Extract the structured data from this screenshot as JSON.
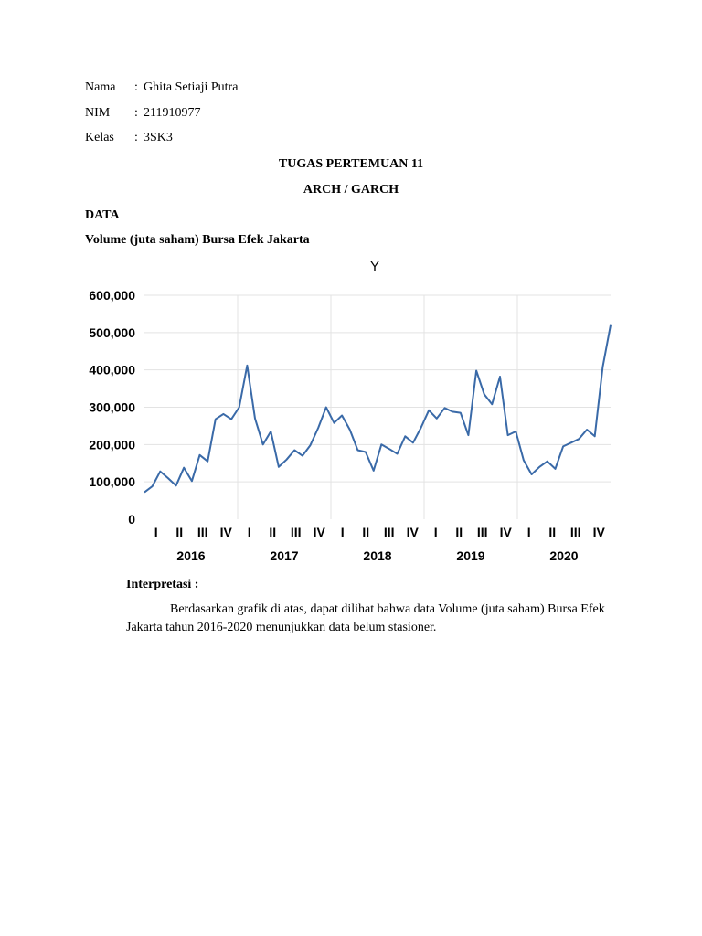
{
  "header": {
    "name_label": "Nama",
    "name_sep": ":",
    "name_value": "Ghita Setiaji Putra",
    "nim_label": "NIM",
    "nim_sep": ":",
    "nim_value": "211910977",
    "class_label": "Kelas",
    "class_sep": ":",
    "class_value": "3SK3"
  },
  "title": {
    "line1": "TUGAS PERTEMUAN 11",
    "line2": "ARCH / GARCH"
  },
  "section": {
    "heading": "DATA",
    "subheading": "Volume (juta saham) Bursa Efek Jakarta"
  },
  "chart_data": {
    "type": "line",
    "title": "Y",
    "xlabel": "",
    "ylabel": "",
    "ylim": [
      0,
      600000
    ],
    "yticks": [
      "0",
      "100,000",
      "200,000",
      "300,000",
      "400,000",
      "500,000",
      "600,000"
    ],
    "quarter_labels": [
      "I",
      "II",
      "III",
      "IV",
      "I",
      "II",
      "III",
      "IV",
      "I",
      "II",
      "III",
      "IV",
      "I",
      "II",
      "III",
      "IV",
      "I",
      "II",
      "III",
      "IV"
    ],
    "year_labels": [
      "2016",
      "2017",
      "2018",
      "2019",
      "2020"
    ],
    "series": [
      {
        "name": "Y",
        "color": "#3a6aa8",
        "values": [
          72000,
          88000,
          128000,
          110000,
          90000,
          138000,
          102000,
          172000,
          155000,
          268000,
          282000,
          268000,
          300000,
          412000,
          270000,
          200000,
          235000,
          140000,
          160000,
          185000,
          170000,
          198000,
          245000,
          300000,
          258000,
          278000,
          240000,
          185000,
          180000,
          130000,
          200000,
          188000,
          175000,
          222000,
          205000,
          245000,
          292000,
          270000,
          298000,
          288000,
          285000,
          225000,
          398000,
          335000,
          308000,
          382000,
          225000,
          235000,
          158000,
          120000,
          140000,
          155000,
          135000,
          195000,
          205000,
          215000,
          240000,
          222000,
          408000,
          520000
        ]
      }
    ]
  },
  "interpretation": {
    "heading": "Interpretasi :",
    "body": "Berdasarkan grafik di atas, dapat dilihat bahwa data Volume (juta saham) Bursa Efek Jakarta tahun 2016-2020 menunjukkan data belum stasioner."
  }
}
